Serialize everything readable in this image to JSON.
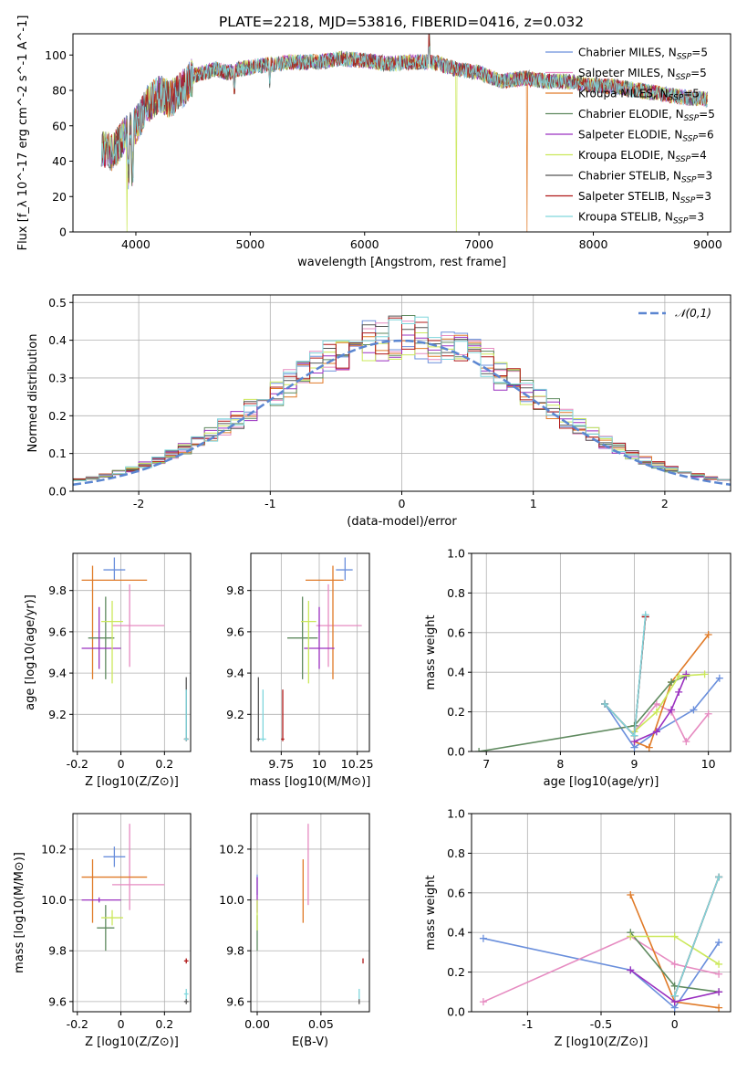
{
  "figure": {
    "title": "PLATE=2218, MJD=53816, FIBERID=0416, z=0.032"
  },
  "series_styles": [
    {
      "name": "Chabrier MILES",
      "nssp": "5",
      "color": "#6a8fdc"
    },
    {
      "name": "Salpeter MILES",
      "nssp": "5",
      "color": "#e68bc1"
    },
    {
      "name": "Kroupa MILES",
      "nssp": "5",
      "color": "#e07a27"
    },
    {
      "name": "Chabrier ELODIE",
      "nssp": "5",
      "color": "#5f8a5f"
    },
    {
      "name": "Salpeter ELODIE",
      "nssp": "6",
      "color": "#9a30c0"
    },
    {
      "name": "Kroupa ELODIE",
      "nssp": "4",
      "color": "#cbe85a"
    },
    {
      "name": "Chabrier STELIB",
      "nssp": "3",
      "color": "#555555"
    },
    {
      "name": "Salpeter STELIB",
      "nssp": "3",
      "color": "#b01818"
    },
    {
      "name": "Kroupa STELIB",
      "nssp": "3",
      "color": "#7fd6dc"
    }
  ],
  "chart_data": [
    {
      "id": "spectrum",
      "type": "line",
      "xlabel": "wavelength [Angstrom, rest frame]",
      "ylabel": "Flux [f_λ 10^-17 erg cm^-2 s^-1 A^-1]",
      "xlim": [
        3450,
        9200
      ],
      "ylim": [
        0,
        112
      ],
      "xticks": [
        4000,
        5000,
        6000,
        7000,
        8000,
        9000
      ],
      "yticks": [
        0,
        20,
        40,
        60,
        80,
        100
      ],
      "legend": "top-right",
      "grid": false,
      "shape": [
        [
          3700,
          48
        ],
        [
          3800,
          45
        ],
        [
          3900,
          55
        ],
        [
          4000,
          60
        ],
        [
          4100,
          72
        ],
        [
          4200,
          78
        ],
        [
          4300,
          75
        ],
        [
          4400,
          80
        ],
        [
          4500,
          88
        ],
        [
          4600,
          90
        ],
        [
          4700,
          92
        ],
        [
          4800,
          90
        ],
        [
          4900,
          92
        ],
        [
          5000,
          93
        ],
        [
          5200,
          95
        ],
        [
          5400,
          96
        ],
        [
          5600,
          96
        ],
        [
          5800,
          98
        ],
        [
          6000,
          97
        ],
        [
          6200,
          95
        ],
        [
          6400,
          96
        ],
        [
          6600,
          96
        ],
        [
          6800,
          92
        ],
        [
          7000,
          90
        ],
        [
          7200,
          85
        ],
        [
          7400,
          87
        ],
        [
          7600,
          85
        ],
        [
          7800,
          85
        ],
        [
          8000,
          83
        ],
        [
          8200,
          82
        ],
        [
          8400,
          80
        ],
        [
          8600,
          78
        ],
        [
          8800,
          76
        ],
        [
          9000,
          75
        ]
      ],
      "series_drops": {
        "Kroupa ELODIE": [
          3920,
          6800
        ],
        "Kroupa MILES": [
          7420
        ]
      }
    },
    {
      "id": "residuals",
      "type": "line",
      "xlabel": "(data-model)/error",
      "ylabel": "Normed distribution",
      "xlim": [
        -2.5,
        2.5
      ],
      "ylim": [
        0,
        0.52
      ],
      "xticks": [
        -2,
        -1,
        0,
        1,
        2
      ],
      "yticks": [
        0.0,
        0.1,
        0.2,
        0.3,
        0.4,
        0.5
      ],
      "grid": true,
      "legend": "top-right",
      "reference": {
        "label": "𝒩(0,1)",
        "color": "#5b86d1"
      }
    },
    {
      "id": "age_vs_Z",
      "type": "scatter",
      "xlabel": "Z [log10(Z/Z⊙)]",
      "ylabel": "age [log10(age/yr)]",
      "xlim": [
        -0.22,
        0.32
      ],
      "ylim": [
        9.02,
        9.98
      ],
      "xticks": [
        -0.2,
        0.0,
        0.2
      ],
      "yticks": [
        9.2,
        9.4,
        9.6,
        9.8
      ],
      "grid": true,
      "points": [
        {
          "x": -0.03,
          "y": 9.9,
          "xerr": [
            0.05,
            0.05
          ],
          "yerr": [
            0.05,
            0.06
          ]
        },
        {
          "x": 0.04,
          "y": 9.63,
          "xerr": [
            0.08,
            0.16
          ],
          "yerr": [
            0.2,
            0.2
          ]
        },
        {
          "x": -0.13,
          "y": 9.85,
          "xerr": [
            0.05,
            0.25
          ],
          "yerr": [
            0.48,
            0.07
          ]
        },
        {
          "x": -0.07,
          "y": 9.57,
          "xerr": [
            0.08,
            0.04
          ],
          "yerr": [
            0.2,
            0.2
          ]
        },
        {
          "x": -0.1,
          "y": 9.52,
          "xerr": [
            0.08,
            0.1
          ],
          "yerr": [
            0.1,
            0.2
          ]
        },
        {
          "x": -0.04,
          "y": 9.65,
          "xerr": [
            0.05,
            0.05
          ],
          "yerr": [
            0.3,
            0.1
          ]
        },
        {
          "x": 0.3,
          "y": 9.08,
          "xerr": [
            0.01,
            0.01
          ],
          "yerr": [
            0.01,
            0.3
          ]
        },
        {
          "x": 0.3,
          "y": 9.08,
          "xerr": [
            0.01,
            0.01
          ],
          "yerr": [
            0.01,
            0.01
          ]
        },
        {
          "x": 0.3,
          "y": 9.08,
          "xerr": [
            0.01,
            0.01
          ],
          "yerr": [
            0.01,
            0.24
          ]
        }
      ]
    },
    {
      "id": "age_vs_mass",
      "type": "scatter",
      "xlabel": "mass [log10(M/M⊙)]",
      "ylabel": "",
      "xlim": [
        9.55,
        10.33
      ],
      "ylim": [
        9.02,
        9.98
      ],
      "xticks": [
        9.75,
        10.0,
        10.25
      ],
      "yticks": [
        9.2,
        9.4,
        9.6,
        9.8
      ],
      "grid": true,
      "points": [
        {
          "x": 10.17,
          "y": 9.9,
          "xerr": [
            0.06,
            0.05
          ],
          "yerr": [
            0.05,
            0.06
          ]
        },
        {
          "x": 10.06,
          "y": 9.63,
          "xerr": [
            0.08,
            0.22
          ],
          "yerr": [
            0.2,
            0.2
          ]
        },
        {
          "x": 10.09,
          "y": 9.85,
          "xerr": [
            0.18,
            0.07
          ],
          "yerr": [
            0.48,
            0.07
          ]
        },
        {
          "x": 9.89,
          "y": 9.57,
          "xerr": [
            0.1,
            0.1
          ],
          "yerr": [
            0.2,
            0.2
          ]
        },
        {
          "x": 10.0,
          "y": 9.52,
          "xerr": [
            0.1,
            0.1
          ],
          "yerr": [
            0.1,
            0.2
          ]
        },
        {
          "x": 9.93,
          "y": 9.65,
          "xerr": [
            0.05,
            0.05
          ],
          "yerr": [
            0.3,
            0.1
          ]
        },
        {
          "x": 9.6,
          "y": 9.08,
          "xerr": [
            0.01,
            0.01
          ],
          "yerr": [
            0.01,
            0.3
          ]
        },
        {
          "x": 9.76,
          "y": 9.08,
          "xerr": [
            0.01,
            0.01
          ],
          "yerr": [
            0.01,
            0.24
          ]
        },
        {
          "x": 9.63,
          "y": 9.08,
          "xerr": [
            0.02,
            0.02
          ],
          "yerr": [
            0.01,
            0.24
          ]
        }
      ]
    },
    {
      "id": "weight_vs_age",
      "type": "line",
      "xlabel": "age [log10(age/yr)]",
      "ylabel": "mass weight",
      "xlim": [
        6.8,
        10.3
      ],
      "ylim": [
        0,
        1.0
      ],
      "xticks": [
        7,
        8,
        9,
        10
      ],
      "yticks": [
        0.0,
        0.2,
        0.4,
        0.6,
        0.8,
        1.0
      ],
      "grid": true,
      "series": [
        {
          "values": [
            [
              8.6,
              0.24
            ],
            [
              9.0,
              0.02
            ],
            [
              9.3,
              0.1
            ],
            [
              9.8,
              0.21
            ],
            [
              10.15,
              0.37
            ]
          ]
        },
        {
          "values": [
            [
              9.0,
              0.1
            ],
            [
              9.3,
              0.24
            ],
            [
              9.5,
              0.2
            ],
            [
              9.7,
              0.05
            ],
            [
              10.0,
              0.19
            ]
          ]
        },
        {
          "values": [
            [
              9.0,
              0.05
            ],
            [
              9.2,
              0.02
            ],
            [
              9.5,
              0.35
            ],
            [
              10.0,
              0.59
            ]
          ]
        },
        {
          "values": [
            [
              6.9,
              0.0
            ],
            [
              9.0,
              0.13
            ],
            [
              9.5,
              0.35
            ],
            [
              9.7,
              0.38
            ]
          ]
        },
        {
          "values": [
            [
              9.0,
              0.05
            ],
            [
              9.3,
              0.1
            ],
            [
              9.5,
              0.21
            ],
            [
              9.6,
              0.3
            ],
            [
              9.7,
              0.39
            ]
          ]
        },
        {
          "values": [
            [
              9.0,
              0.1
            ],
            [
              9.3,
              0.2
            ],
            [
              9.6,
              0.38
            ],
            [
              9.95,
              0.39
            ]
          ]
        },
        {
          "values": [
            [
              8.6,
              0.24
            ],
            [
              9.0,
              0.08
            ],
            [
              9.15,
              0.68
            ]
          ]
        },
        {
          "values": [
            [
              8.6,
              0.24
            ],
            [
              9.0,
              0.08
            ],
            [
              9.15,
              0.68
            ]
          ]
        },
        {
          "values": [
            [
              8.6,
              0.24
            ],
            [
              9.0,
              0.08
            ],
            [
              9.15,
              0.69
            ]
          ]
        }
      ]
    },
    {
      "id": "mass_vs_Z",
      "type": "scatter",
      "xlabel": "Z [log10(Z/Z⊙)]",
      "ylabel": "mass [log10(M/M⊙)]",
      "xlim": [
        -0.22,
        0.32
      ],
      "ylim": [
        9.56,
        10.34
      ],
      "xticks": [
        -0.2,
        0.0,
        0.2
      ],
      "yticks": [
        9.6,
        9.8,
        10.0,
        10.2
      ],
      "grid": true,
      "points": [
        {
          "x": -0.03,
          "y": 10.17,
          "xerr": [
            0.05,
            0.05
          ],
          "yerr": [
            0.04,
            0.04
          ]
        },
        {
          "x": 0.04,
          "y": 10.06,
          "xerr": [
            0.08,
            0.16
          ],
          "yerr": [
            0.1,
            0.24
          ]
        },
        {
          "x": -0.13,
          "y": 10.09,
          "xerr": [
            0.05,
            0.25
          ],
          "yerr": [
            0.18,
            0.07
          ]
        },
        {
          "x": -0.07,
          "y": 9.89,
          "xerr": [
            0.04,
            0.04
          ],
          "yerr": [
            0.09,
            0.09
          ]
        },
        {
          "x": -0.1,
          "y": 10.0,
          "xerr": [
            0.08,
            0.1
          ],
          "yerr": [
            0.01,
            0.01
          ]
        },
        {
          "x": -0.04,
          "y": 9.93,
          "xerr": [
            0.05,
            0.05
          ],
          "yerr": [
            0.03,
            0.03
          ]
        },
        {
          "x": 0.3,
          "y": 9.6,
          "xerr": [
            0.01,
            0.01
          ],
          "yerr": [
            0.01,
            0.01
          ]
        },
        {
          "x": 0.3,
          "y": 9.76,
          "xerr": [
            0.01,
            0.01
          ],
          "yerr": [
            0.01,
            0.01
          ]
        },
        {
          "x": 0.3,
          "y": 9.63,
          "xerr": [
            0.01,
            0.01
          ],
          "yerr": [
            0.02,
            0.02
          ]
        }
      ]
    },
    {
      "id": "mass_vs_ebv",
      "type": "scatter",
      "xlabel": "E(B-V)",
      "ylabel": "",
      "xlim": [
        -0.005,
        0.088
      ],
      "ylim": [
        9.56,
        10.34
      ],
      "xticks": [
        0.0,
        0.05
      ],
      "xticklabels": [
        "0.00",
        "0.05"
      ],
      "yticks": [
        9.6,
        9.8,
        10.0,
        10.2
      ],
      "grid": true,
      "points": [
        {
          "x": 0.0,
          "y": 10.06,
          "xerr": [
            0.0,
            0.0
          ],
          "yerr": [
            0.04,
            0.04
          ]
        },
        {
          "x": 0.04,
          "y": 10.06,
          "xerr": [
            0.0,
            0.0
          ],
          "yerr": [
            0.08,
            0.24
          ]
        },
        {
          "x": 0.036,
          "y": 10.09,
          "xerr": [
            0.0,
            0.0
          ],
          "yerr": [
            0.18,
            0.07
          ]
        },
        {
          "x": 0.0,
          "y": 9.87,
          "xerr": [
            0.0,
            0.0
          ],
          "yerr": [
            0.07,
            0.07
          ]
        },
        {
          "x": 0.0,
          "y": 10.0,
          "xerr": [
            0.0,
            0.0
          ],
          "yerr": [
            0.05,
            0.09
          ]
        },
        {
          "x": 0.0,
          "y": 9.93,
          "xerr": [
            0.0,
            0.0
          ],
          "yerr": [
            0.05,
            0.07
          ]
        },
        {
          "x": 0.08,
          "y": 9.6,
          "xerr": [
            0.0,
            0.0
          ],
          "yerr": [
            0.01,
            0.01
          ]
        },
        {
          "x": 0.083,
          "y": 9.76,
          "xerr": [
            0.0,
            0.0
          ],
          "yerr": [
            0.01,
            0.01
          ]
        },
        {
          "x": 0.08,
          "y": 9.63,
          "xerr": [
            0.0,
            0.0
          ],
          "yerr": [
            0.02,
            0.02
          ]
        }
      ]
    },
    {
      "id": "weight_vs_Z",
      "type": "line",
      "xlabel": "Z [log10(Z/Z⊙)]",
      "ylabel": "mass weight",
      "xlim": [
        -1.38,
        0.38
      ],
      "ylim": [
        0,
        1.0
      ],
      "xticks": [
        -1.0,
        -0.5,
        0.0
      ],
      "yticks": [
        0.0,
        0.2,
        0.4,
        0.6,
        0.8,
        1.0
      ],
      "grid": true,
      "series": [
        {
          "values": [
            [
              -1.3,
              0.37
            ],
            [
              -0.3,
              0.21
            ],
            [
              0.0,
              0.02
            ],
            [
              0.3,
              0.35
            ]
          ]
        },
        {
          "values": [
            [
              -1.3,
              0.05
            ],
            [
              -0.3,
              0.38
            ],
            [
              0.0,
              0.24
            ],
            [
              0.3,
              0.19
            ]
          ]
        },
        {
          "values": [
            [
              -0.3,
              0.59
            ],
            [
              0.0,
              0.05
            ],
            [
              0.3,
              0.02
            ]
          ]
        },
        {
          "values": [
            [
              -0.3,
              0.4
            ],
            [
              0.0,
              0.13
            ],
            [
              0.3,
              0.1
            ]
          ]
        },
        {
          "values": [
            [
              -0.3,
              0.21
            ],
            [
              0.0,
              0.05
            ],
            [
              0.3,
              0.1
            ]
          ]
        },
        {
          "values": [
            [
              -0.3,
              0.38
            ],
            [
              0.0,
              0.38
            ],
            [
              0.3,
              0.24
            ]
          ]
        },
        {
          "values": [
            [
              0.0,
              0.08
            ],
            [
              0.3,
              0.68
            ]
          ]
        },
        {
          "values": [
            [
              0.0,
              0.08
            ],
            [
              0.3,
              0.68
            ]
          ]
        },
        {
          "values": [
            [
              0.0,
              0.08
            ],
            [
              0.3,
              0.68
            ]
          ]
        }
      ]
    }
  ]
}
